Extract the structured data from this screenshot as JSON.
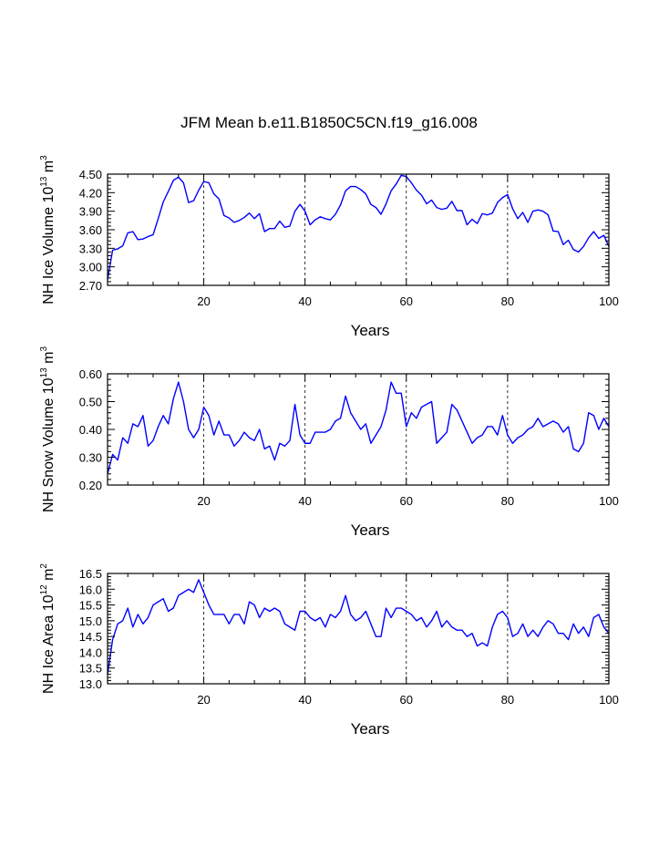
{
  "page": {
    "title": "JFM Mean b.e11.B1850C5CN.f19_g16.008"
  },
  "colors": {
    "line": "#0000ff",
    "axis": "#000000",
    "grid": "#000000",
    "background": "#ffffff"
  },
  "chart_data": [
    {
      "type": "line",
      "name": "ice-volume",
      "ylabel": {
        "main": "NH Ice Volume 10",
        "sup": "13",
        "mid": " m",
        "sup2": "3"
      },
      "xlabel": "Years",
      "xlim": [
        1,
        100
      ],
      "ylim": [
        2.7,
        4.5
      ],
      "xticks": [
        20,
        40,
        60,
        80,
        100
      ],
      "xtick_labels": [
        "20",
        "40",
        "60",
        "80",
        "100"
      ],
      "yticks": [
        2.7,
        3.0,
        3.3,
        3.6,
        3.9,
        4.2,
        4.5
      ],
      "ytick_labels": [
        "2.70",
        "3.00",
        "3.30",
        "3.60",
        "3.90",
        "4.20",
        "4.50"
      ],
      "grid_x": [
        20,
        40,
        60,
        80
      ],
      "series": [
        {
          "name": "NH Ice Volume",
          "values": [
            2.79,
            3.27,
            3.29,
            3.34,
            3.55,
            3.57,
            3.44,
            3.45,
            3.49,
            3.52,
            3.78,
            4.05,
            4.22,
            4.4,
            4.45,
            4.36,
            4.04,
            4.07,
            4.24,
            4.38,
            4.36,
            4.18,
            4.1,
            3.83,
            3.79,
            3.72,
            3.75,
            3.8,
            3.87,
            3.78,
            3.86,
            3.57,
            3.62,
            3.62,
            3.74,
            3.64,
            3.66,
            3.9,
            4.01,
            3.9,
            3.68,
            3.76,
            3.81,
            3.78,
            3.76,
            3.85,
            4.0,
            4.23,
            4.3,
            4.3,
            4.25,
            4.18,
            4.01,
            3.96,
            3.85,
            4.02,
            4.23,
            4.34,
            4.48,
            4.46,
            4.36,
            4.24,
            4.16,
            4.02,
            4.08,
            3.96,
            3.93,
            3.95,
            4.06,
            3.91,
            3.91,
            3.68,
            3.77,
            3.7,
            3.86,
            3.84,
            3.87,
            4.04,
            4.12,
            4.17,
            3.94,
            3.78,
            3.88,
            3.72,
            3.9,
            3.92,
            3.9,
            3.84,
            3.58,
            3.57,
            3.36,
            3.43,
            3.28,
            3.24,
            3.33,
            3.47,
            3.57,
            3.46,
            3.51,
            3.33
          ]
        }
      ]
    },
    {
      "type": "line",
      "name": "snow-volume",
      "ylabel": {
        "main": "NH Snow Volume 10",
        "sup": "13",
        "mid": " m",
        "sup2": "3"
      },
      "xlabel": "Years",
      "xlim": [
        1,
        100
      ],
      "ylim": [
        0.2,
        0.6
      ],
      "xticks": [
        20,
        40,
        60,
        80,
        100
      ],
      "xtick_labels": [
        "20",
        "40",
        "60",
        "80",
        "100"
      ],
      "yticks": [
        0.2,
        0.3,
        0.4,
        0.5,
        0.6
      ],
      "ytick_labels": [
        "0.20",
        "0.30",
        "0.40",
        "0.50",
        "0.60"
      ],
      "grid_x": [
        20,
        40,
        60,
        80
      ],
      "series": [
        {
          "name": "NH Snow Volume",
          "values": [
            0.24,
            0.31,
            0.29,
            0.37,
            0.35,
            0.42,
            0.41,
            0.45,
            0.34,
            0.36,
            0.41,
            0.45,
            0.42,
            0.51,
            0.57,
            0.5,
            0.4,
            0.37,
            0.4,
            0.48,
            0.45,
            0.38,
            0.43,
            0.38,
            0.38,
            0.34,
            0.36,
            0.39,
            0.37,
            0.36,
            0.4,
            0.33,
            0.34,
            0.29,
            0.35,
            0.34,
            0.36,
            0.49,
            0.38,
            0.35,
            0.35,
            0.39,
            0.39,
            0.39,
            0.4,
            0.43,
            0.44,
            0.52,
            0.46,
            0.43,
            0.4,
            0.42,
            0.35,
            0.38,
            0.41,
            0.47,
            0.57,
            0.53,
            0.53,
            0.41,
            0.46,
            0.44,
            0.48,
            0.49,
            0.5,
            0.35,
            0.37,
            0.39,
            0.49,
            0.47,
            0.43,
            0.39,
            0.35,
            0.37,
            0.38,
            0.41,
            0.41,
            0.38,
            0.45,
            0.38,
            0.35,
            0.37,
            0.38,
            0.4,
            0.41,
            0.44,
            0.41,
            0.42,
            0.43,
            0.42,
            0.39,
            0.41,
            0.33,
            0.32,
            0.35,
            0.46,
            0.45,
            0.4,
            0.44,
            0.41
          ]
        }
      ]
    },
    {
      "type": "line",
      "name": "ice-area",
      "ylabel": {
        "main": "NH Ice Area 10",
        "sup": "12",
        "mid": " m",
        "sup2": "2"
      },
      "xlabel": "Years",
      "xlim": [
        1,
        100
      ],
      "ylim": [
        13.0,
        16.5
      ],
      "xticks": [
        20,
        40,
        60,
        80,
        100
      ],
      "xtick_labels": [
        "20",
        "40",
        "60",
        "80",
        "100"
      ],
      "yticks": [
        13.0,
        13.5,
        14.0,
        14.5,
        15.0,
        15.5,
        16.0,
        16.5
      ],
      "ytick_labels": [
        "13.0",
        "13.5",
        "14.0",
        "14.5",
        "15.0",
        "15.5",
        "16.0",
        "16.5"
      ],
      "grid_x": [
        20,
        40,
        60,
        80
      ],
      "series": [
        {
          "name": "NH Ice Area",
          "values": [
            13.3,
            14.4,
            14.9,
            15.0,
            15.4,
            14.8,
            15.2,
            14.9,
            15.1,
            15.5,
            15.6,
            15.7,
            15.3,
            15.4,
            15.8,
            15.9,
            16.0,
            15.9,
            16.3,
            15.9,
            15.5,
            15.2,
            15.2,
            15.2,
            14.9,
            15.2,
            15.2,
            14.9,
            15.6,
            15.5,
            15.1,
            15.4,
            15.3,
            15.4,
            15.3,
            14.9,
            14.8,
            14.7,
            15.3,
            15.3,
            15.1,
            15.0,
            15.1,
            14.8,
            15.2,
            15.1,
            15.3,
            15.8,
            15.2,
            15.0,
            15.1,
            15.3,
            14.9,
            14.5,
            14.5,
            15.4,
            15.1,
            15.4,
            15.4,
            15.3,
            15.2,
            15.0,
            15.1,
            14.8,
            15.0,
            15.3,
            14.8,
            15.0,
            14.8,
            14.7,
            14.7,
            14.5,
            14.6,
            14.2,
            14.3,
            14.2,
            14.8,
            15.2,
            15.3,
            15.1,
            14.5,
            14.6,
            14.9,
            14.5,
            14.7,
            14.5,
            14.8,
            15.0,
            14.9,
            14.6,
            14.6,
            14.4,
            14.9,
            14.6,
            14.8,
            14.5,
            15.1,
            15.2,
            14.8,
            14.6
          ]
        }
      ]
    }
  ]
}
